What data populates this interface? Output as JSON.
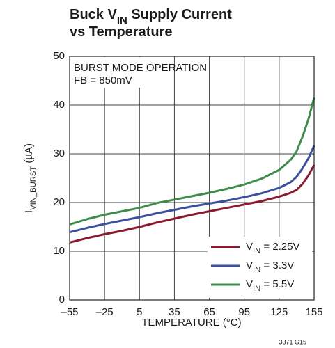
{
  "chart_data": {
    "type": "line",
    "title_lines": [
      [
        "Buck V",
        "IN",
        " Supply Current"
      ],
      [
        "vs Temperature"
      ]
    ],
    "x_label": "TEMPERATURE (°C)",
    "y_label": [
      "I",
      "VIN_BURST",
      " (µA)"
    ],
    "annotations": [
      "BURST MODE OPERATION",
      "FB = 850mV"
    ],
    "note": "3371 G15",
    "x": [
      -55,
      -40,
      -25,
      -10,
      5,
      20,
      35,
      50,
      65,
      80,
      95,
      110,
      125,
      135,
      140,
      145,
      150,
      155
    ],
    "series": [
      {
        "name": [
          "V",
          "IN",
          " = 2.25V"
        ],
        "color": "#8b1a2f",
        "values": [
          11.8,
          12.7,
          13.5,
          14.2,
          15.0,
          15.9,
          16.7,
          17.5,
          18.2,
          18.9,
          19.6,
          20.3,
          21.2,
          22.0,
          22.6,
          23.8,
          25.5,
          27.7
        ]
      },
      {
        "name": [
          "V",
          "IN",
          " = 3.3V"
        ],
        "color": "#3a4f9e",
        "values": [
          13.9,
          14.8,
          15.6,
          16.3,
          17.0,
          17.8,
          18.5,
          19.2,
          19.8,
          20.4,
          21.1,
          21.9,
          23.0,
          24.2,
          25.3,
          27.0,
          29.0,
          31.7
        ]
      },
      {
        "name": [
          "V",
          "IN",
          " = 5.5V"
        ],
        "color": "#3f8c4a",
        "values": [
          15.5,
          16.6,
          17.5,
          18.2,
          18.9,
          19.9,
          20.6,
          21.3,
          22.0,
          22.8,
          23.7,
          24.9,
          26.7,
          28.8,
          30.5,
          33.5,
          37.0,
          41.5
        ]
      }
    ],
    "xlim": [
      -55,
      155
    ],
    "xticks": [
      {
        "value": -55,
        "label": "–55"
      },
      {
        "value": -25,
        "label": "–25"
      },
      5,
      35,
      65,
      95,
      125,
      155
    ],
    "ylim": [
      0,
      50
    ],
    "yticks": [
      0,
      10,
      20,
      30,
      40,
      50
    ],
    "grid": true,
    "legend": "lower right"
  }
}
